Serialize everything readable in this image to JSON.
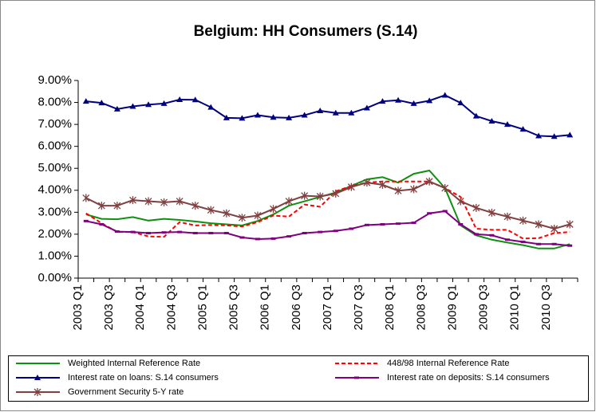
{
  "chart_data": {
    "type": "line",
    "title": "Belgium: HH Consumers (S.14)",
    "categories": [
      "2003 Q1",
      null,
      "2003 Q3",
      null,
      "2004 Q1",
      null,
      "2004 Q3",
      null,
      "2005 Q1",
      null,
      "2005 Q3",
      null,
      "2006 Q1",
      null,
      "2006 Q3",
      null,
      "2007 Q1",
      null,
      "2007 Q3",
      null,
      "2008 Q1",
      null,
      "2008 Q3",
      null,
      "2009 Q1",
      null,
      "2009 Q3",
      null,
      "2010 Q1",
      null,
      "2010 Q3",
      null
    ],
    "series": [
      {
        "name": "Weighted Internal Reference Rate",
        "color": "#109010",
        "line_style": "solid",
        "marker": "none",
        "values": [
          2.9,
          2.7,
          2.68,
          2.78,
          2.62,
          2.7,
          2.65,
          2.58,
          2.5,
          2.45,
          2.4,
          2.6,
          2.9,
          3.3,
          3.5,
          3.7,
          3.9,
          4.2,
          4.5,
          4.6,
          4.35,
          4.75,
          4.9,
          4.1,
          2.4,
          1.95,
          1.75,
          1.62,
          1.5,
          1.35,
          1.35,
          1.55
        ]
      },
      {
        "name": "448/98 Internal Reference Rate",
        "color": "#ff0000",
        "line_style": "dashed",
        "marker": "none",
        "values": [
          2.95,
          2.5,
          2.1,
          2.1,
          1.9,
          1.88,
          2.55,
          2.4,
          2.42,
          2.4,
          2.35,
          2.55,
          2.85,
          2.8,
          3.35,
          3.25,
          3.95,
          4.2,
          4.35,
          4.4,
          4.4,
          4.4,
          4.4,
          4.1,
          3.7,
          2.25,
          2.2,
          2.2,
          1.8,
          1.82,
          2.05,
          2.1
        ]
      },
      {
        "name": "Interest rate on loans: S.14 consumers",
        "color": "#000080",
        "line_style": "solid",
        "marker": "triangle",
        "values": [
          8.05,
          7.98,
          7.7,
          7.82,
          7.9,
          7.95,
          8.13,
          8.12,
          7.78,
          7.3,
          7.28,
          7.42,
          7.32,
          7.3,
          7.42,
          7.62,
          7.52,
          7.52,
          7.75,
          8.05,
          8.1,
          7.95,
          8.08,
          8.33,
          7.98,
          7.38,
          7.15,
          7.0,
          6.78,
          6.48,
          6.45,
          6.52
        ]
      },
      {
        "name": "Interest rate on deposits: S.14 consumers",
        "color": "#800080",
        "line_style": "solid",
        "marker": "dash",
        "values": [
          2.6,
          2.45,
          2.12,
          2.1,
          2.05,
          2.08,
          2.1,
          2.05,
          2.05,
          2.05,
          1.85,
          1.78,
          1.8,
          1.9,
          2.05,
          2.1,
          2.15,
          2.25,
          2.42,
          2.45,
          2.48,
          2.52,
          2.95,
          3.05,
          2.45,
          2.0,
          1.95,
          1.75,
          1.65,
          1.55,
          1.55,
          1.48
        ]
      },
      {
        "name": "Government Security 5-Y rate",
        "color": "#804040",
        "line_style": "solid",
        "marker": "asterisk",
        "values": [
          3.65,
          3.3,
          3.3,
          3.55,
          3.5,
          3.45,
          3.5,
          3.3,
          3.1,
          2.95,
          2.75,
          2.85,
          3.15,
          3.5,
          3.75,
          3.72,
          3.85,
          4.15,
          4.35,
          4.25,
          3.98,
          4.05,
          4.4,
          4.1,
          3.5,
          3.2,
          2.98,
          2.8,
          2.62,
          2.45,
          2.25,
          2.45
        ]
      }
    ],
    "ylim": [
      0,
      9
    ],
    "yticks": [
      {
        "value": 0,
        "label": "0.00%"
      },
      {
        "value": 1,
        "label": "1.00%"
      },
      {
        "value": 2,
        "label": "2.00%"
      },
      {
        "value": 3,
        "label": "3.00%"
      },
      {
        "value": 4,
        "label": "4.00%"
      },
      {
        "value": 5,
        "label": "5.00%"
      },
      {
        "value": 6,
        "label": "6.00%"
      },
      {
        "value": 7,
        "label": "7.00%"
      },
      {
        "value": 8,
        "label": "8.00%"
      },
      {
        "value": 9,
        "label": "9.00%"
      }
    ],
    "grid": false,
    "legend": "bottom"
  }
}
